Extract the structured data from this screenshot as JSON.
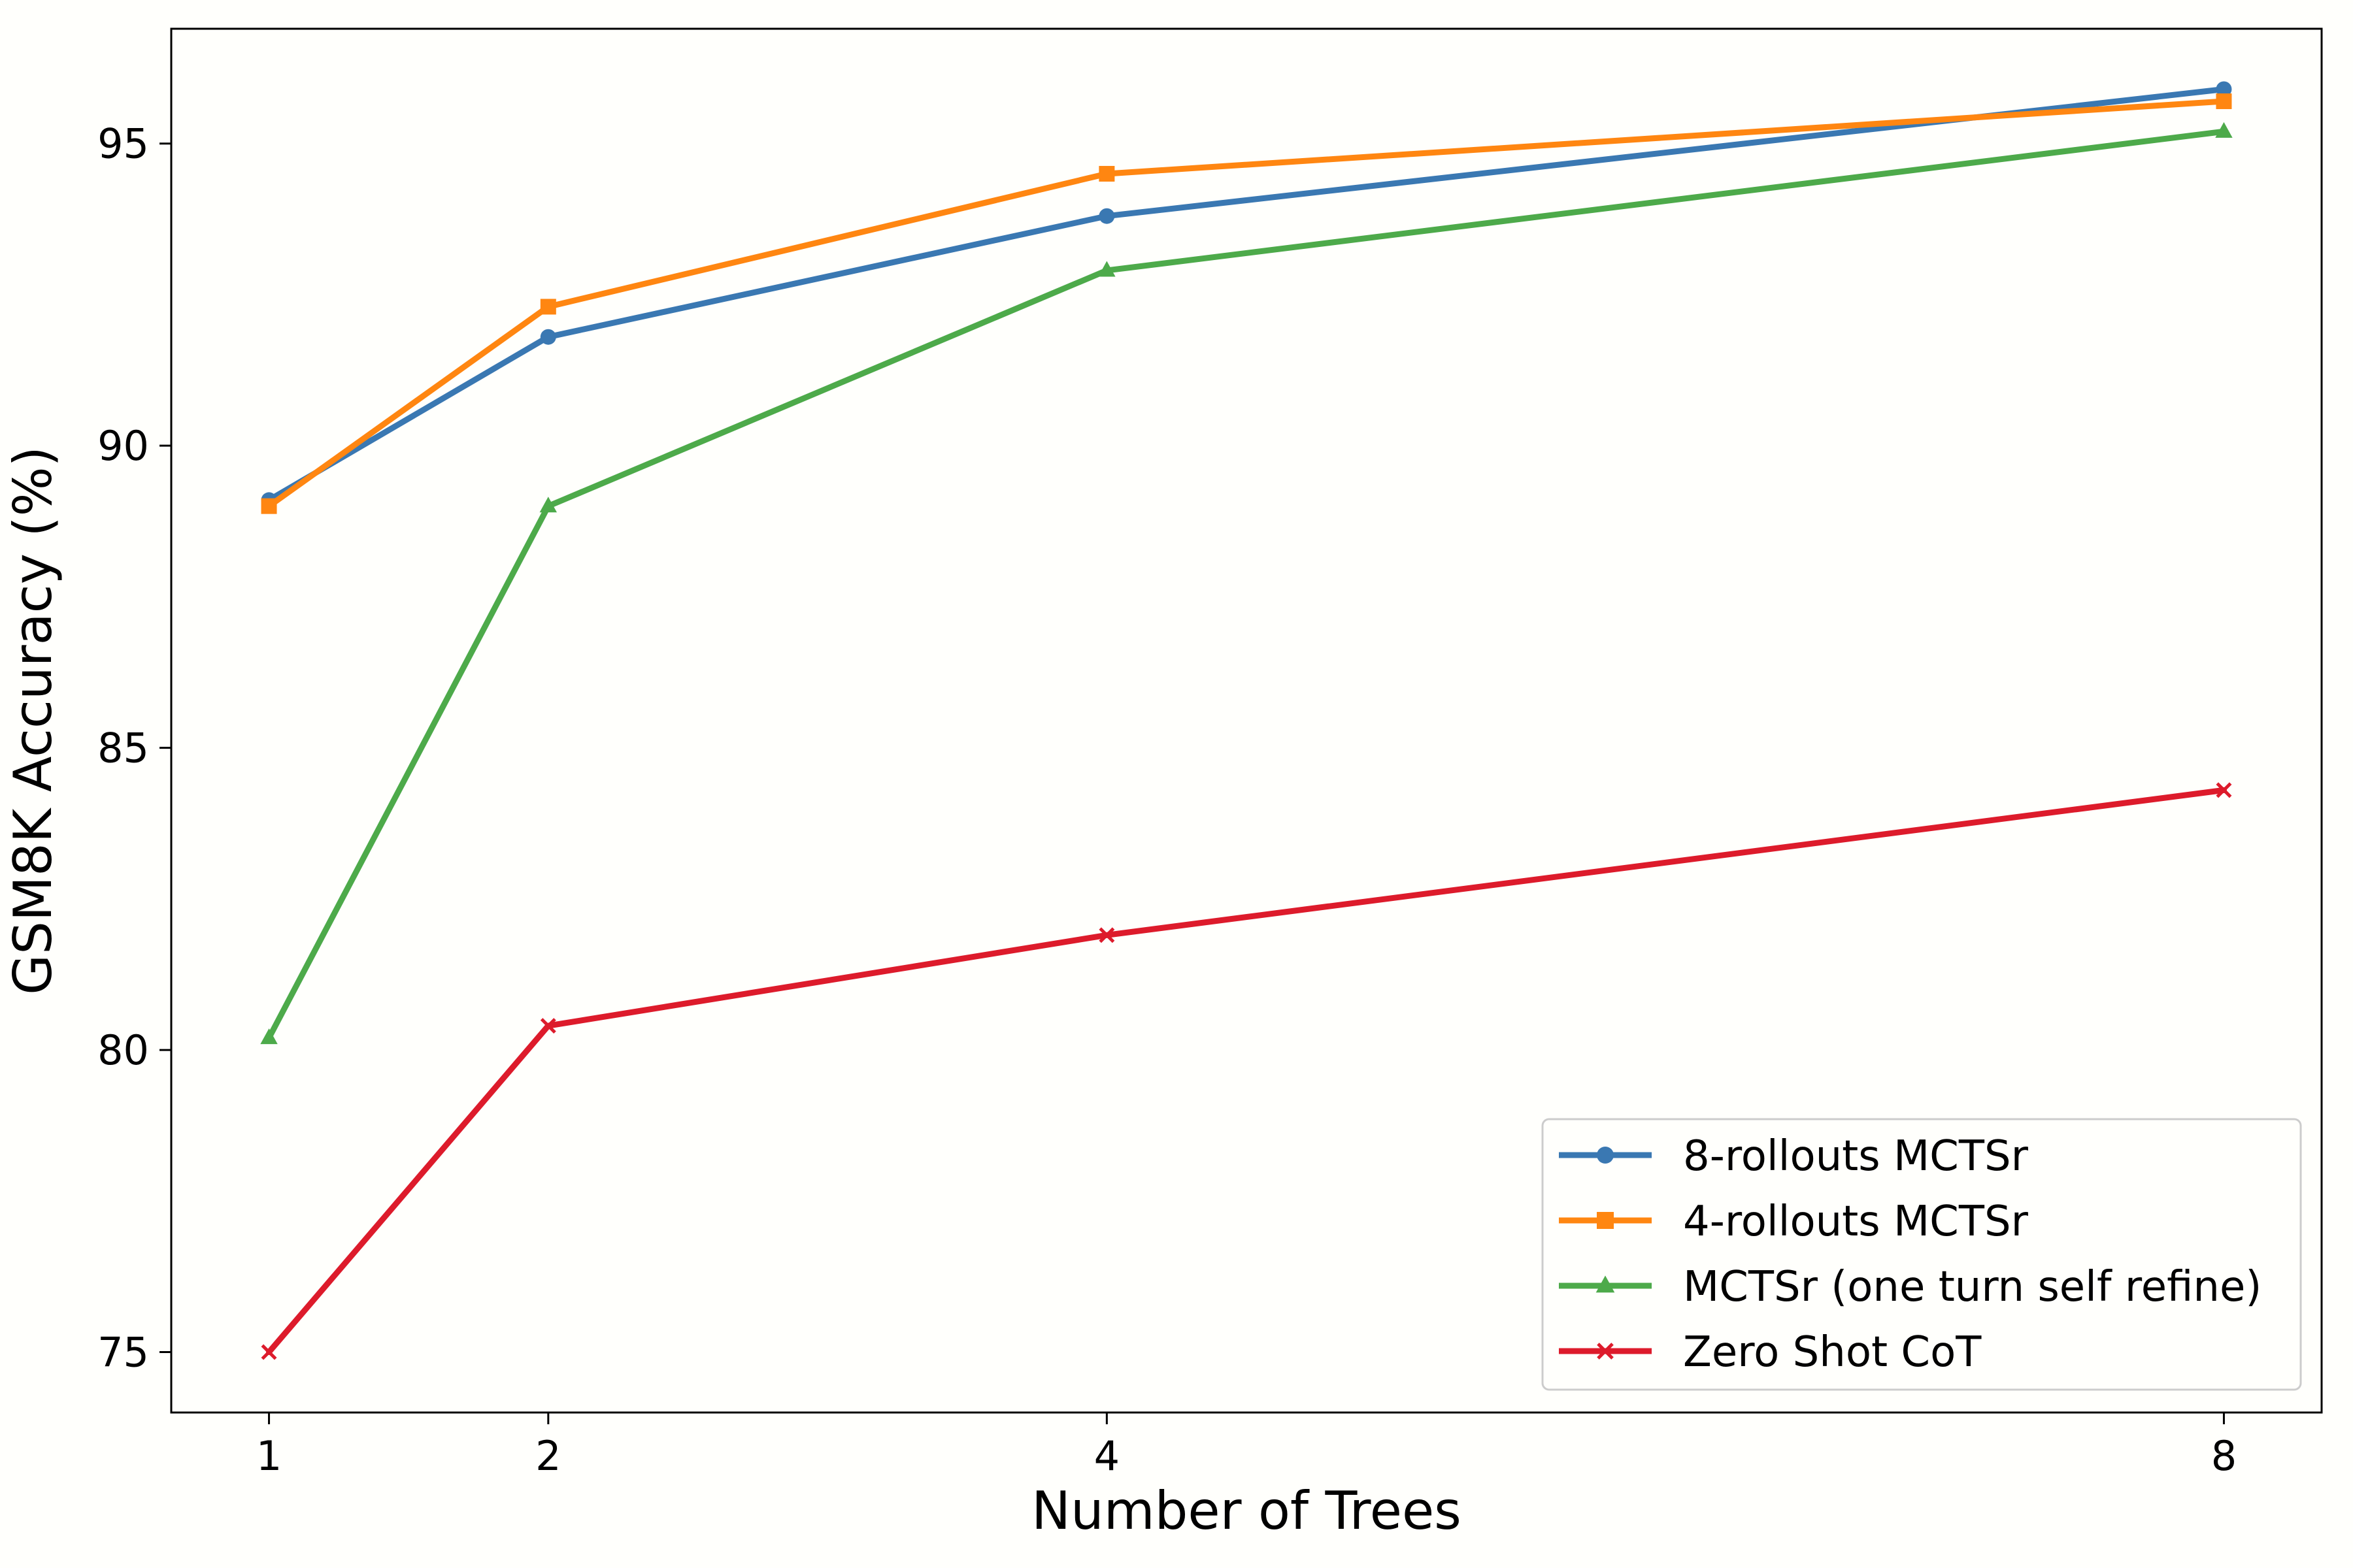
{
  "chart_data": {
    "type": "line",
    "title": "",
    "xlabel": "Number of Trees",
    "ylabel": "GSM8K Accuracy (%)",
    "x": [
      1,
      2,
      4,
      8
    ],
    "xticks": [
      "1",
      "2",
      "4",
      "8"
    ],
    "yticks": [
      "75",
      "80",
      "85",
      "90",
      "95"
    ],
    "xlim": [
      0.65,
      8.35
    ],
    "ylim": [
      74.0,
      96.9
    ],
    "grid": false,
    "legend_position": "bottom-right",
    "series": [
      {
        "name": "8-rollouts MCTSr",
        "color": "#3a78b2",
        "marker": "circle",
        "values": [
          89.1,
          91.8,
          93.8,
          95.9
        ]
      },
      {
        "name": "4-rollouts MCTSr",
        "color": "#ff8611",
        "marker": "square",
        "values": [
          89.0,
          92.3,
          94.5,
          95.7
        ]
      },
      {
        "name": "MCTSr (one turn self refine)",
        "color": "#4daa4a",
        "marker": "triangle",
        "values": [
          80.2,
          89.0,
          92.9,
          95.2
        ]
      },
      {
        "name": "Zero Shot CoT",
        "color": "#dd1b2b",
        "marker": "x",
        "values": [
          75.0,
          80.4,
          81.9,
          84.3
        ]
      }
    ]
  }
}
